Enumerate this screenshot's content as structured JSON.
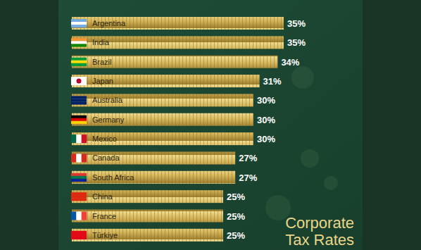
{
  "chart_data": {
    "type": "bar",
    "title": "Corporate Tax Rates",
    "orientation": "horizontal",
    "categories": [
      "Argentina",
      "India",
      "Brazil",
      "Japan",
      "Australia",
      "Germany",
      "Mexico",
      "Canada",
      "South Africa",
      "China",
      "France",
      "Türkiye"
    ],
    "values": [
      35,
      35,
      34,
      31,
      30,
      30,
      30,
      27,
      27,
      25,
      25,
      25
    ],
    "value_labels": [
      "35%",
      "35%",
      "34%",
      "31%",
      "30%",
      "30%",
      "30%",
      "27%",
      "27%",
      "25%",
      "25%",
      "25%"
    ],
    "color": "#d4b45a",
    "xlim": [
      0,
      35
    ],
    "data_labels": true,
    "tick_labels": false,
    "grid": false
  }
}
